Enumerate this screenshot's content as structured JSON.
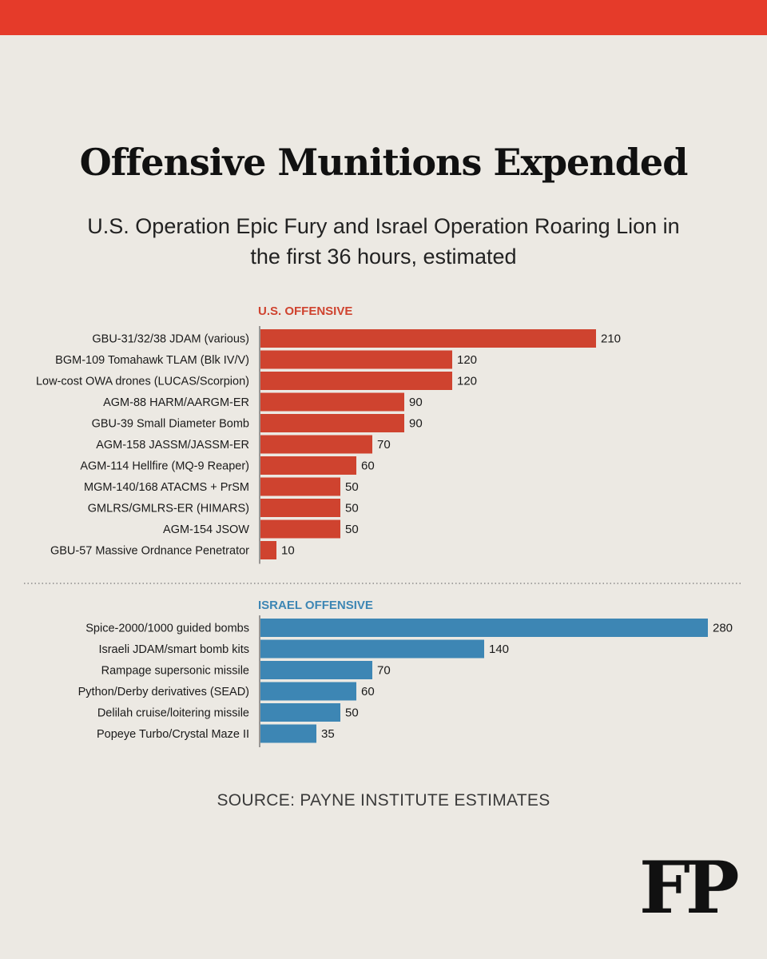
{
  "colors": {
    "accent_red": "#e53b2a",
    "us_bar": "#cf432f",
    "israel_bar": "#3d86b4",
    "background": "#ece9e3"
  },
  "header": {
    "title": "Offensive Munitions Expended",
    "subtitle": "U.S. Operation Epic Fury and Israel Operation Roaring Lion in the first 36 hours, estimated"
  },
  "chart_data": [
    {
      "type": "bar",
      "orientation": "horizontal",
      "title": "U.S. OFFENSIVE",
      "categories": [
        "GBU-31/32/38 JDAM (various)",
        "BGM-109 Tomahawk TLAM (Blk IV/V)",
        "Low-cost OWA drones (LUCAS/Scorpion)",
        "AGM-88 HARM/AARGM-ER",
        "GBU-39 Small Diameter Bomb",
        "AGM-158 JASSM/JASSM-ER",
        "AGM-114 Hellfire (MQ-9 Reaper)",
        "MGM-140/168 ATACMS + PrSM",
        "GMLRS/GMLRS-ER (HIMARS)",
        "AGM-154 JSOW",
        "GBU-57 Massive Ordnance Penetrator"
      ],
      "values": [
        210,
        120,
        120,
        90,
        90,
        70,
        60,
        50,
        50,
        50,
        10
      ],
      "xlim": [
        0,
        280
      ]
    },
    {
      "type": "bar",
      "orientation": "horizontal",
      "title": "ISRAEL OFFENSIVE",
      "categories": [
        "Spice-2000/1000 guided bombs",
        "Israeli JDAM/smart bomb kits",
        "Rampage supersonic missile",
        "Python/Derby derivatives (SEAD)",
        "Delilah cruise/loitering missile",
        "Popeye Turbo/Crystal Maze II"
      ],
      "values": [
        280,
        140,
        70,
        60,
        50,
        35
      ],
      "xlim": [
        0,
        280
      ]
    }
  ],
  "footer": {
    "source": "SOURCE: PAYNE INSTITUTE ESTIMATES",
    "logo": "FP"
  }
}
